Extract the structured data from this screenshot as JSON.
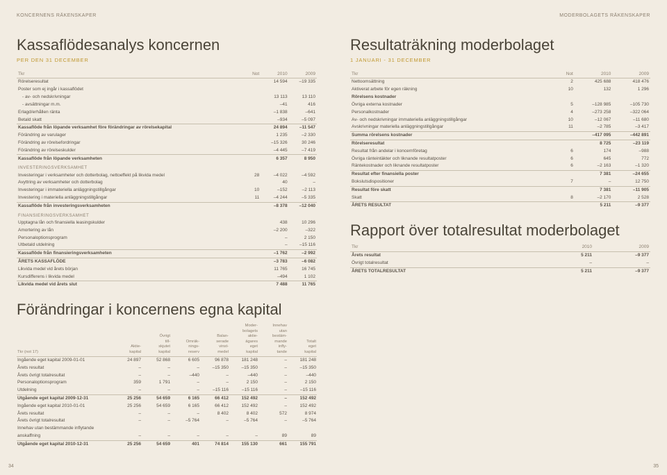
{
  "colors": {
    "bg": "#f2ece2",
    "text": "#5a5248",
    "accent": "#c09830",
    "muted": "#8a7e6e",
    "line": "#c7bfae"
  },
  "leftPage": {
    "header": "KONCERNENS RÄKENSKAPER",
    "title": "Kassaflödesanalys koncernen",
    "subtitle": "PER DEN 31 DECEMBER",
    "pageNum": "34",
    "cols": [
      "Tkr",
      "Not",
      "2010",
      "2009"
    ],
    "rows": [
      [
        "Rörelseresultat",
        "",
        "14 594",
        "–19 335",
        ""
      ],
      [
        "Poster som ej ingår i kassaflödet",
        "",
        "",
        "",
        ""
      ],
      [
        "- av- och nedskrivningar",
        "",
        "13 113",
        "13 110",
        "indent"
      ],
      [
        "- avsättningar m.m.",
        "",
        "–41",
        "416",
        "indent"
      ],
      [
        "Erlagd/erhållen ränta",
        "",
        "–1 838",
        "–641",
        ""
      ],
      [
        "Betald skatt",
        "",
        "–934",
        "–5 097",
        ""
      ],
      [
        "Kassaflöde från löpande verksamhet före förändringar av rörelsekapital",
        "",
        "24 894",
        "–11 547",
        "bold topline"
      ],
      [
        "Förändring av varulager",
        "",
        "1 235",
        "–2 330",
        ""
      ],
      [
        "Förändring av rörelsefordringar",
        "",
        "–15 326",
        "30 246",
        ""
      ],
      [
        "Förändring av rörelseskulder",
        "",
        "–4 445",
        "–7 419",
        ""
      ],
      [
        "Kassaflöde från löpande verksamheten",
        "",
        "6 357",
        "8 950",
        "bold topline"
      ],
      [
        "INVESTERINGSVERKSAMHET",
        "",
        "",
        "",
        "section-head"
      ],
      [
        "Investeringar i verksamheter och dotterbolag, nettoeffekt på likvida medel",
        "28",
        "–4 022",
        "–4 592",
        ""
      ],
      [
        "Avyttring av verksamheter och dotterbolag",
        "",
        "40",
        "–",
        ""
      ],
      [
        "Investeringar i immateriella anläggningstillgångar",
        "10",
        "–152",
        "–2 113",
        ""
      ],
      [
        "Investering i materiella anläggningstillgångar",
        "11",
        "–4 244",
        "–5 335",
        ""
      ],
      [
        "Kassaflöde från investeringsverksamheten",
        "",
        "–8 378",
        "–12 040",
        "bold topline"
      ],
      [
        "FINANSIERINGSVERKSAMHET",
        "",
        "",
        "",
        "section-head"
      ],
      [
        "Upptagna lån och finansiella leasingskulder",
        "",
        "438",
        "10 296",
        ""
      ],
      [
        "Amortering av lån",
        "",
        "–2 200",
        "–322",
        ""
      ],
      [
        "Personaloptionsprogram",
        "",
        "–",
        "2 150",
        ""
      ],
      [
        "Utbetald utdelning",
        "",
        "–",
        "–15 116",
        ""
      ],
      [
        "Kassaflöde från finansieringsverksamheten",
        "",
        "–1 762",
        "–2 992",
        "bold topline"
      ],
      [
        "ÅRETS KASSAFLÖDE",
        "",
        "–3 783",
        "–6 082",
        "bold topline"
      ],
      [
        "Likvida medel vid årets början",
        "",
        "11 765",
        "16 745",
        ""
      ],
      [
        "Kursdifferens i likvida medel",
        "",
        "–494",
        "1 102",
        ""
      ],
      [
        "Likvida medel vid årets slut",
        "",
        "7 488",
        "11 765",
        "bold topline"
      ]
    ],
    "title2": "Förändringar i koncernens egna kapital",
    "equityCols": [
      "Tkr (not 17)",
      "Aktie-\nkapital",
      "Övrigt\ntill-\nskjutet\nkapital",
      "Omräk-\nnings-\nreserv",
      "Balan-\nserade\nvinst-\nmedel",
      "Moder-\nbolagets\naktie-\nägares\neget\nkapital",
      "Innehav\nutan\nbestäm-\nmande\ninfly-\ntande",
      "Totalt\neget\nkapital"
    ],
    "equityRows": [
      [
        "Ingående eget kapital 2009-01-01",
        "24 897",
        "52 868",
        "6 605",
        "96 878",
        "181 248",
        "–",
        "181 248",
        ""
      ],
      [
        "Årets resultat",
        "–",
        "–",
        "–",
        "–15 350",
        "–15 350",
        "–",
        "–15 350",
        ""
      ],
      [
        "Årets övrigt totalresultat",
        "–",
        "–",
        "–440",
        "–",
        "–440",
        "–",
        "–440",
        ""
      ],
      [
        "Personaloptionsprogram",
        "359",
        "1 791",
        "–",
        "–",
        "2 150",
        "–",
        "2 150",
        ""
      ],
      [
        "Utdelning",
        "–",
        "–",
        "–",
        "–15 116",
        "–15 116",
        "–",
        "–15 116",
        ""
      ],
      [
        "Utgående eget kapital 2009-12-31",
        "25 256",
        "54 659",
        "6 165",
        "66 412",
        "152 492",
        "–",
        "152 492",
        "bold topline"
      ],
      [
        "Ingående eget kapital 2010-01-01",
        "25 256",
        "54 659",
        "6 165",
        "66 412",
        "152 492",
        "–",
        "152 492",
        ""
      ],
      [
        "Årets resultat",
        "–",
        "–",
        "–",
        "8 402",
        "8 402",
        "572",
        "8 974",
        ""
      ],
      [
        "Årets övrigt totalresultat",
        "–",
        "–",
        "–5 764",
        "–",
        "–5 764",
        "–",
        "–5 764",
        ""
      ],
      [
        "Innehav utan bestämmande inflytande",
        "",
        "",
        "",
        "",
        "",
        "",
        "",
        ""
      ],
      [
        "anskaffning",
        "–",
        "–",
        "–",
        "–",
        "–",
        "89",
        "89",
        ""
      ],
      [
        "Utgående eget kapital 2010-12-31",
        "25 256",
        "54 659",
        "401",
        "74 814",
        "155 130",
        "661",
        "155 791",
        "bold topline"
      ]
    ]
  },
  "rightPage": {
    "header": "MODERBOLAGETS RÄKENSKAPER",
    "title": "Resultaträkning moderbolaget",
    "subtitle": "1 JANUARI - 31 DECEMBER",
    "pageNum": "35",
    "cols": [
      "Tkr",
      "Not",
      "2010",
      "2009"
    ],
    "rows": [
      [
        "Nettoomsättning",
        "2",
        "425 688",
        "418 476",
        ""
      ],
      [
        "Aktiverat arbete för egen räkning",
        "10",
        "132",
        "1 296",
        ""
      ],
      [
        "Rörelsens kostnader",
        "",
        "",
        "",
        "bold"
      ],
      [
        "Övriga externa kostnader",
        "5",
        "–128 985",
        "–105 730",
        ""
      ],
      [
        "Personalkostnader",
        "4",
        "–273 258",
        "–322 064",
        ""
      ],
      [
        "Av- och nedskrivningar immateriella anläggningstillgångar",
        "10",
        "–12 067",
        "–11 680",
        ""
      ],
      [
        "Avskrivningar materiella anläggningstillgångar",
        "11",
        "–2 785",
        "–3 417",
        ""
      ],
      [
        "Summa rörelsens kostnader",
        "",
        "–417 095",
        "–442 891",
        "bold topline"
      ],
      [
        "Rörelseresultat",
        "",
        "8 725",
        "–23 119",
        "bold topline"
      ],
      [
        "Resultat från andelar i koncernföretag",
        "6",
        "174",
        "–988",
        ""
      ],
      [
        "Övriga ränteintäkter och liknande resultatposter",
        "6",
        "645",
        "772",
        ""
      ],
      [
        "Räntekostnader och liknande resultatposter",
        "6",
        "–2 163",
        "–1 320",
        ""
      ],
      [
        "Resultat efter finansiella poster",
        "",
        "7 381",
        "–24 655",
        "bold topline"
      ],
      [
        "Bokslutsdispositioner",
        "7",
        "–",
        "12 750",
        ""
      ],
      [
        "Resultat före skatt",
        "",
        "7 381",
        "–11 905",
        "bold topline"
      ],
      [
        "Skatt",
        "8",
        "–2 170",
        "2 528",
        ""
      ],
      [
        "ÅRETS RESULTAT",
        "",
        "5 211",
        "–9 377",
        "bold topline"
      ]
    ],
    "title2": "Rapport över totalresultat moderbolaget",
    "totCols": [
      "Tkr",
      "2010",
      "2009"
    ],
    "totRows": [
      [
        "Årets resultat",
        "5 211",
        "–9 377",
        "bold"
      ],
      [
        "Övrigt totalresultat",
        "–",
        "–",
        ""
      ],
      [
        "ÅRETS TOTALRESULTAT",
        "5 211",
        "–9 377",
        "bold topline"
      ]
    ]
  }
}
